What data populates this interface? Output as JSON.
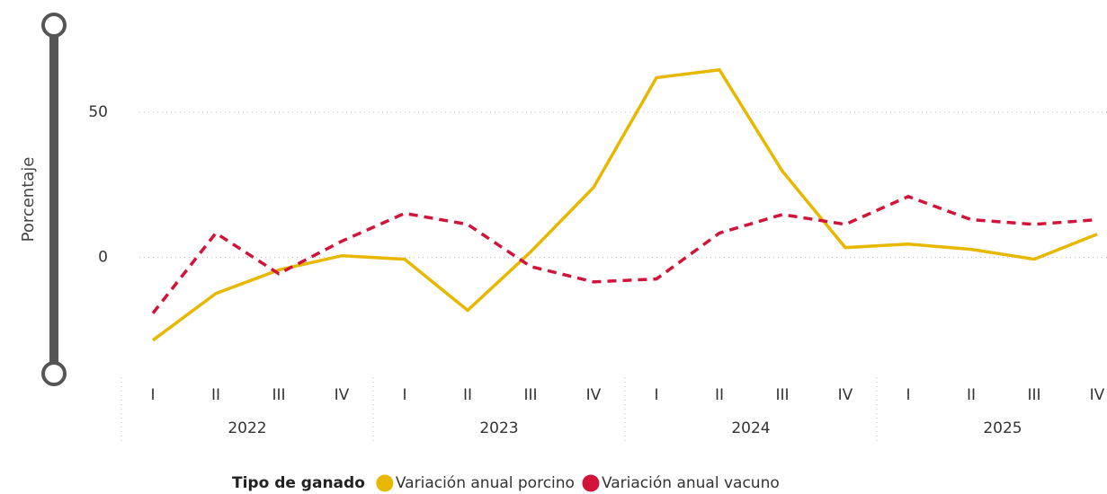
{
  "chart_data": {
    "type": "line",
    "y_axis_label": "Porcentaje",
    "categories": [
      "I",
      "II",
      "III",
      "IV",
      "I",
      "II",
      "III",
      "IV",
      "I",
      "II",
      "III",
      "IV",
      "I",
      "II",
      "III",
      "IV"
    ],
    "years": [
      "2022",
      "2023",
      "2024",
      "2025"
    ],
    "legend_title": "Tipo de ganado",
    "series": [
      {
        "name": "Variación anual porcino",
        "color": "#E8B800",
        "style": "solid",
        "values": [
          -28.5,
          -12.4,
          -4.3,
          0.6,
          -0.6,
          -18.2,
          1.9,
          24.1,
          61.9,
          64.6,
          29.7,
          3.4,
          4.6,
          2.8,
          -0.6,
          8.0
        ]
      },
      {
        "name": "Variación anual vacuno",
        "color": "#D2143A",
        "style": "dashed",
        "values": [
          -19.2,
          8.4,
          -5.6,
          5.6,
          15.2,
          11.4,
          -3.1,
          -8.4,
          -7.4,
          8.4,
          14.8,
          11.4,
          21.0,
          13.0,
          11.4,
          13.0
        ]
      }
    ],
    "ylim": [
      -40,
      80
    ],
    "yticks": [
      0,
      50
    ],
    "grid": true,
    "legend": "bottom"
  }
}
